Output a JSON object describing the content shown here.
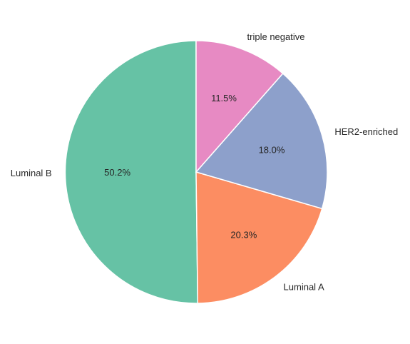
{
  "chart_data": {
    "type": "pie",
    "categories": [
      "Luminal B",
      "Luminal A",
      "HER2-enriched",
      "triple negative"
    ],
    "values": [
      50.2,
      20.3,
      18.0,
      11.5
    ],
    "percent_labels": [
      "50.2%",
      "20.3%",
      "18.0%",
      "11.5%"
    ],
    "colors": [
      "#66c2a5",
      "#fc8d62",
      "#8da0cb",
      "#e78ac3"
    ],
    "start_angle_deg": 90,
    "direction": "counterclockwise",
    "title": "",
    "legend": "none"
  }
}
